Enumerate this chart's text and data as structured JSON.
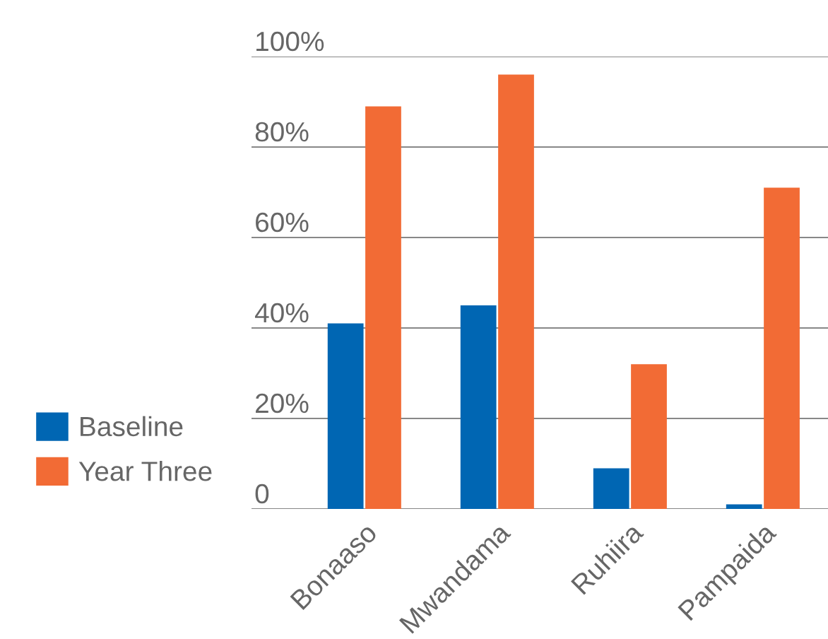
{
  "chart_data": {
    "type": "bar",
    "categories": [
      "Bonaaso",
      "Mwandama",
      "Ruhiira",
      "Pampaida"
    ],
    "series": [
      {
        "name": "Baseline",
        "color": "#0066b3",
        "values": [
          41,
          45,
          9,
          1
        ]
      },
      {
        "name": "Year Three",
        "color": "#f26b35",
        "values": [
          89,
          96,
          32,
          71
        ]
      }
    ],
    "ylim": [
      0,
      100
    ],
    "yticks": [
      {
        "value": 0,
        "label": "0"
      },
      {
        "value": 20,
        "label": "20%"
      },
      {
        "value": 40,
        "label": "40%"
      },
      {
        "value": 60,
        "label": "60%"
      },
      {
        "value": 80,
        "label": "80%"
      },
      {
        "value": 100,
        "label": "100%"
      }
    ],
    "grid": "y",
    "legend": "left"
  }
}
